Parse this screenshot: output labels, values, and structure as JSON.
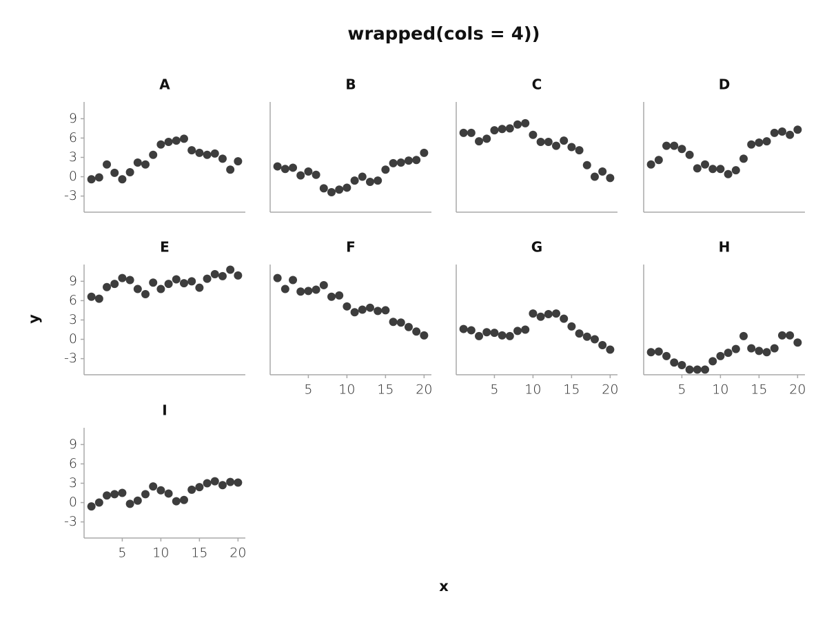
{
  "chart_data": {
    "type": "scatter",
    "title": "wrapped(cols = 4))",
    "x_label": "x",
    "y_label": "y",
    "color": "#3d3d3d",
    "xlim": [
      0.05,
      20.95
    ],
    "ylim": [
      -5.5,
      11.6
    ],
    "xticks": [
      5,
      10,
      15,
      20
    ],
    "yticks": [
      -3,
      0,
      3,
      6,
      9
    ],
    "x": [
      1,
      2,
      3,
      4,
      5,
      6,
      7,
      8,
      9,
      10,
      11,
      12,
      13,
      14,
      15,
      16,
      17,
      18,
      19,
      20
    ],
    "panels": [
      {
        "title": "A",
        "values": [
          -0.4,
          -0.1,
          1.9,
          0.6,
          -0.4,
          0.7,
          2.2,
          1.9,
          3.4,
          5.0,
          5.4,
          5.6,
          5.9,
          4.1,
          3.7,
          3.4,
          3.6,
          2.8,
          1.1,
          2.4
        ]
      },
      {
        "title": "B",
        "values": [
          1.6,
          1.2,
          1.4,
          0.2,
          0.8,
          0.3,
          -1.8,
          -2.4,
          -2.0,
          -1.7,
          -0.6,
          0.0,
          -0.8,
          -0.6,
          1.1,
          2.1,
          2.2,
          2.5,
          2.6,
          3.7
        ]
      },
      {
        "title": "C",
        "values": [
          6.8,
          6.8,
          5.5,
          5.9,
          7.2,
          7.4,
          7.5,
          8.1,
          8.3,
          6.5,
          5.4,
          5.4,
          4.8,
          5.6,
          4.6,
          4.1,
          1.8,
          0.0,
          0.8,
          -0.2
        ]
      },
      {
        "title": "D",
        "values": [
          1.9,
          2.6,
          4.8,
          4.8,
          4.3,
          3.4,
          1.3,
          1.9,
          1.2,
          1.2,
          0.4,
          1.0,
          2.8,
          5.0,
          5.3,
          5.5,
          6.8,
          7.0,
          6.5,
          7.3
        ]
      },
      {
        "title": "E",
        "values": [
          6.6,
          6.3,
          8.1,
          8.6,
          9.5,
          9.2,
          7.8,
          7.0,
          8.8,
          7.8,
          8.6,
          9.3,
          8.7,
          9.0,
          8.0,
          9.4,
          10.1,
          9.8,
          10.8,
          9.9
        ]
      },
      {
        "title": "F",
        "values": [
          9.5,
          7.8,
          9.2,
          7.4,
          7.5,
          7.7,
          8.4,
          6.6,
          6.8,
          5.1,
          4.2,
          4.6,
          4.9,
          4.4,
          4.5,
          2.7,
          2.6,
          1.9,
          1.2,
          0.6
        ]
      },
      {
        "title": "G",
        "values": [
          1.6,
          1.4,
          0.5,
          1.1,
          1.0,
          0.6,
          0.5,
          1.3,
          1.5,
          4.0,
          3.5,
          3.9,
          4.0,
          3.2,
          2.0,
          0.9,
          0.4,
          0.0,
          -0.9,
          -1.6
        ]
      },
      {
        "title": "H",
        "values": [
          -2.0,
          -1.9,
          -2.6,
          -3.6,
          -4.0,
          -4.7,
          -4.7,
          -4.7,
          -3.4,
          -2.6,
          -2.1,
          -1.5,
          0.5,
          -1.4,
          -1.8,
          -2.0,
          -1.4,
          0.6,
          0.6,
          -0.5
        ]
      },
      {
        "title": "I",
        "values": [
          -0.6,
          0.0,
          1.1,
          1.3,
          1.5,
          -0.2,
          0.3,
          1.3,
          2.5,
          1.9,
          1.4,
          0.2,
          0.4,
          2.0,
          2.4,
          3.0,
          3.3,
          2.7,
          3.2,
          3.1
        ]
      }
    ]
  }
}
